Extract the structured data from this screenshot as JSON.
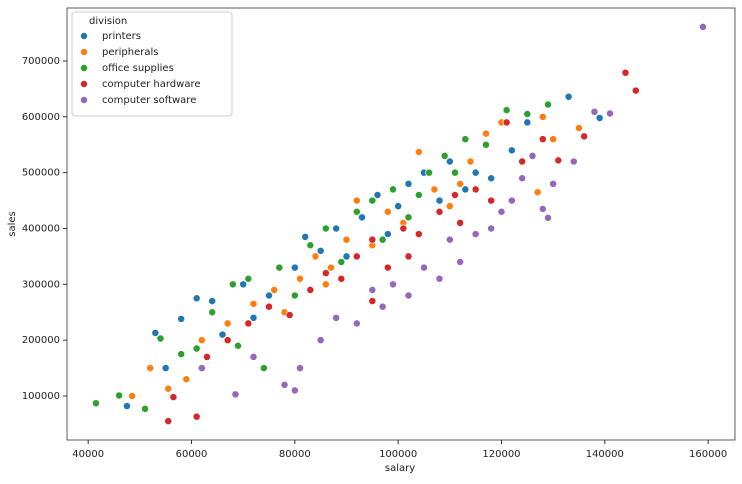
{
  "chart_data": {
    "type": "scatter",
    "x_label": "salary",
    "y_label": "sales",
    "xlim": [
      35900,
      165200
    ],
    "ylim": [
      21200,
      794900
    ],
    "xticks": [
      40000,
      60000,
      80000,
      100000,
      120000,
      140000,
      160000
    ],
    "yticks": [
      100000,
      200000,
      300000,
      400000,
      500000,
      600000,
      700000
    ],
    "legend_title": "division",
    "legend_position": "upper-left",
    "series": [
      {
        "name": "printers",
        "color": "#1f77b4",
        "x": [
          47500,
          53000,
          58000,
          61000,
          64000,
          70000,
          75000,
          80000,
          82000,
          85000,
          88000,
          90000,
          93000,
          96000,
          98000,
          100000,
          102000,
          105000,
          108000,
          110000,
          113000,
          115000,
          118000,
          122000,
          125000,
          133000,
          139000,
          55000,
          66000,
          72000
        ],
        "values": [
          82000,
          213000,
          238000,
          275000,
          270000,
          300000,
          280000,
          330000,
          385000,
          360000,
          400000,
          350000,
          420000,
          460000,
          390000,
          440000,
          480000,
          500000,
          450000,
          520000,
          470000,
          500000,
          490000,
          540000,
          590000,
          636000,
          598000,
          150000,
          210000,
          240000
        ]
      },
      {
        "name": "peripherals",
        "color": "#ff7f0e",
        "x": [
          48500,
          52000,
          55500,
          59000,
          62000,
          67000,
          72000,
          76000,
          81000,
          84000,
          87000,
          90000,
          92000,
          95000,
          98000,
          101000,
          104000,
          107000,
          110000,
          114000,
          117000,
          120000,
          124000,
          127000,
          128000,
          130000,
          135000,
          78000,
          86000,
          112000
        ],
        "values": [
          100000,
          150000,
          113000,
          130000,
          200000,
          230000,
          265000,
          290000,
          310000,
          350000,
          330000,
          380000,
          450000,
          370000,
          430000,
          410000,
          537000,
          470000,
          440000,
          520000,
          570000,
          590000,
          520000,
          465000,
          600000,
          560000,
          580000,
          250000,
          300000,
          480000
        ]
      },
      {
        "name": "office supplies",
        "color": "#2ca02c",
        "x": [
          41500,
          46000,
          51000,
          54000,
          58000,
          61000,
          64000,
          68000,
          71000,
          74000,
          77000,
          80000,
          83000,
          86000,
          89000,
          92000,
          95000,
          99000,
          102000,
          106000,
          109000,
          113000,
          117000,
          121000,
          125000,
          129000,
          97000,
          104000,
          111000,
          69000
        ],
        "values": [
          87000,
          101000,
          77000,
          203000,
          175000,
          185000,
          250000,
          300000,
          310000,
          150000,
          330000,
          280000,
          370000,
          400000,
          340000,
          430000,
          450000,
          470000,
          420000,
          500000,
          530000,
          560000,
          550000,
          612000,
          605000,
          622000,
          380000,
          460000,
          500000,
          190000
        ]
      },
      {
        "name": "computer hardware",
        "color": "#d62728",
        "x": [
          55500,
          56500,
          61000,
          63000,
          67000,
          71000,
          75000,
          79000,
          83000,
          86000,
          89000,
          92000,
          95000,
          98000,
          101000,
          104000,
          108000,
          111000,
          115000,
          118000,
          121000,
          124000,
          128000,
          131000,
          136000,
          144000,
          146000,
          95000,
          102000,
          112000
        ],
        "values": [
          55000,
          98000,
          63000,
          170000,
          200000,
          230000,
          260000,
          245000,
          290000,
          320000,
          310000,
          350000,
          380000,
          330000,
          400000,
          390000,
          430000,
          460000,
          470000,
          450000,
          590000,
          520000,
          560000,
          522000,
          565000,
          679000,
          647000,
          270000,
          350000,
          410000
        ]
      },
      {
        "name": "computer software",
        "color": "#9467bd",
        "x": [
          62000,
          68500,
          72000,
          78000,
          80000,
          81000,
          85000,
          88000,
          92000,
          95000,
          97000,
          99000,
          102000,
          105000,
          108000,
          110000,
          112000,
          115000,
          118000,
          120000,
          122000,
          124000,
          126000,
          128000,
          129000,
          130000,
          134000,
          138000,
          141000,
          159000
        ],
        "values": [
          150000,
          103000,
          170000,
          120000,
          110000,
          150000,
          200000,
          240000,
          230000,
          290000,
          260000,
          300000,
          280000,
          330000,
          310000,
          380000,
          340000,
          390000,
          400000,
          430000,
          450000,
          490000,
          530000,
          435000,
          419000,
          480000,
          520000,
          609000,
          606000,
          761000
        ]
      }
    ]
  }
}
